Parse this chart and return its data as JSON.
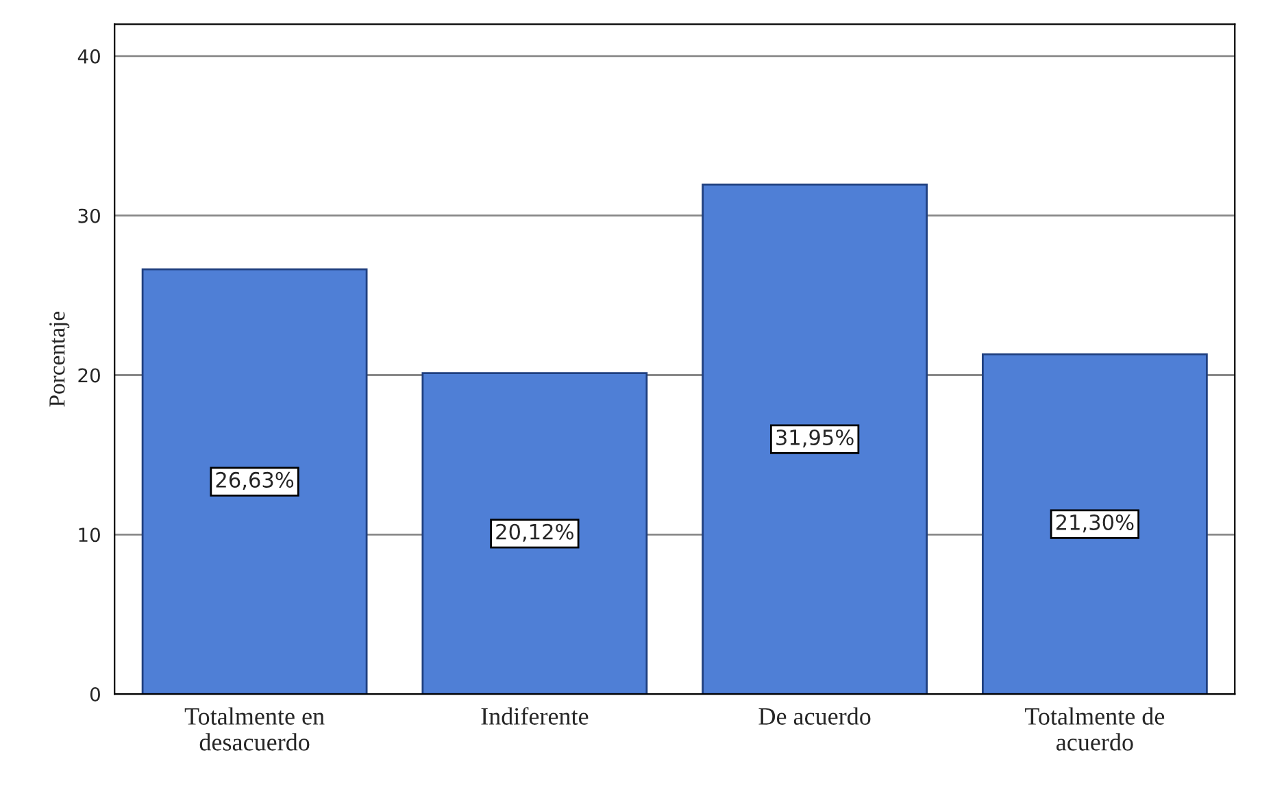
{
  "chart_data": {
    "type": "bar",
    "ylabel": "Porcentaje",
    "categories": [
      "Totalmente en\ndesacuerdo",
      "Indiferente",
      "De acuerdo",
      "Totalmente de\nacuerdo"
    ],
    "values": [
      26.63,
      20.12,
      31.95,
      21.3
    ],
    "value_labels": [
      "26,63%",
      "20,12%",
      "31,95%",
      "21,30%"
    ],
    "color": "#4f7fd6",
    "ylim": [
      0,
      42
    ],
    "yticks": [
      0,
      10,
      20,
      30,
      40
    ],
    "grid": "y"
  }
}
